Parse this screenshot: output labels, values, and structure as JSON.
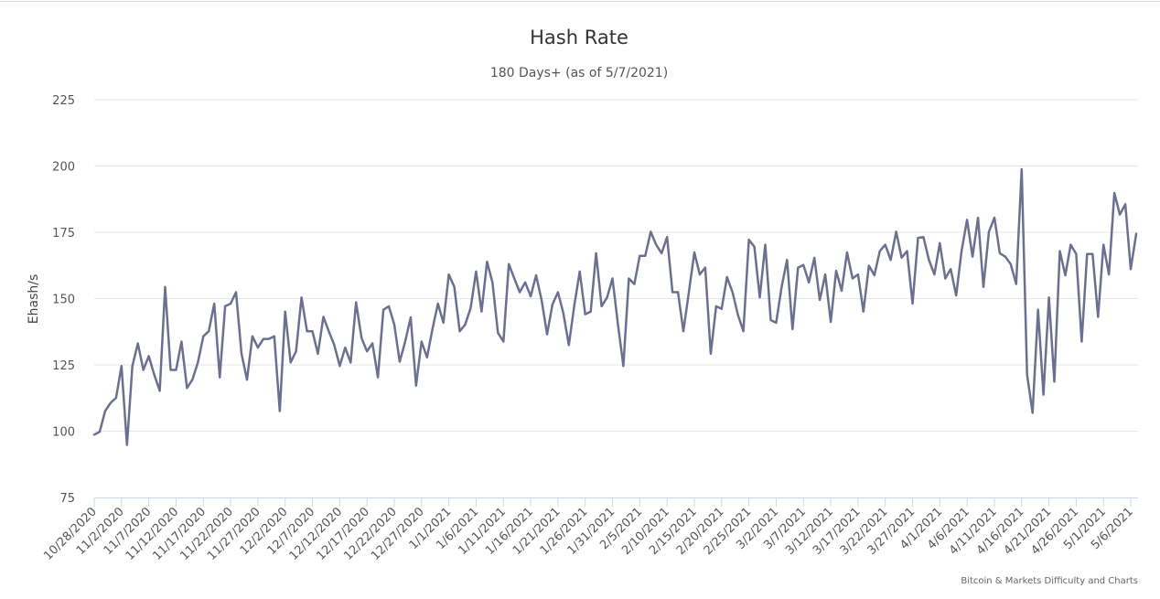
{
  "chart_data": {
    "type": "line",
    "title": "Hash Rate",
    "subtitle": "180 Days+ (as of 5/7/2021)",
    "ylabel": "Ehash/s",
    "ylim": [
      75,
      225
    ],
    "yticks": [
      75,
      100,
      125,
      150,
      175,
      200,
      225
    ],
    "xlim": [
      "10/28/2020",
      "5/7/2021"
    ],
    "xtick_labels": [
      "10/28/2020",
      "11/2/2020",
      "11/7/2020",
      "11/12/2020",
      "11/17/2020",
      "11/22/2020",
      "11/27/2020",
      "12/2/2020",
      "12/7/2020",
      "12/12/2020",
      "12/17/2020",
      "12/22/2020",
      "12/27/2020",
      "1/1/2021",
      "1/6/2021",
      "1/11/2021",
      "1/16/2021",
      "1/21/2021",
      "1/26/2021",
      "1/31/2021",
      "2/5/2021",
      "2/10/2021",
      "2/15/2021",
      "2/20/2021",
      "2/25/2021",
      "3/2/2021",
      "3/7/2021",
      "3/12/2021",
      "3/17/2021",
      "3/22/2021",
      "3/27/2021",
      "4/1/2021",
      "4/6/2021",
      "4/11/2021",
      "4/16/2021",
      "4/21/2021",
      "4/26/2021",
      "5/1/2021",
      "5/6/2021"
    ],
    "grid": true,
    "legend": "none",
    "line_color": "#6b7090",
    "series": [
      {
        "values": [
          98.7,
          99.8,
          107.6,
          110.7,
          112.6,
          124.6,
          94.8,
          124.6,
          133.1,
          123.1,
          128.3,
          121.3,
          115.2,
          154.4,
          123.1,
          123.1,
          133.8,
          116.3,
          119.4,
          125.9,
          135.8,
          137.7,
          148.1,
          120.3,
          147.1,
          148.1,
          152.4,
          129.2,
          119.4,
          135.8,
          131.5,
          134.8,
          134.8,
          135.8,
          107.6,
          145.1,
          125.9,
          130.1,
          150.4,
          137.7,
          137.7,
          129.2,
          143.1,
          137.7,
          132.5,
          124.6,
          131.5,
          125.9,
          148.6,
          135.1,
          130.1,
          133.1,
          120.3,
          145.8,
          147.1,
          140.2,
          126.2,
          133.8,
          142.9,
          117.2,
          133.8,
          127.8,
          138.5,
          148.1,
          140.9,
          159.1,
          154.4,
          137.7,
          140.2,
          146.5,
          160.2,
          145.1,
          163.9,
          156.1,
          137.1,
          133.8,
          163.0,
          157.6,
          152.4,
          156.1,
          150.9,
          158.8,
          149.5,
          136.5,
          147.8,
          152.4,
          144.5,
          132.5,
          147.5,
          160.2,
          144.1,
          145.1,
          167.1,
          147.1,
          150.4,
          157.6,
          140.2,
          124.6,
          157.6,
          155.5,
          166.1,
          166.1,
          175.2,
          170.3,
          167.1,
          173.2,
          152.4,
          152.4,
          137.7,
          152.4,
          167.4,
          159.1,
          161.7,
          129.2,
          147.1,
          146.1,
          158.1,
          152.4,
          143.8,
          137.7,
          172.2,
          169.5,
          150.4,
          170.3,
          141.9,
          140.9,
          154.4,
          164.6,
          138.5,
          161.7,
          162.7,
          156.1,
          165.4,
          149.5,
          159.1,
          141.2,
          160.5,
          153.0,
          167.4,
          157.6,
          159.1,
          145.1,
          162.4,
          158.8,
          167.9,
          170.3,
          164.6,
          175.2,
          165.4,
          167.9,
          148.1,
          172.9,
          173.2,
          164.6,
          159.1,
          170.9,
          157.6,
          161.1,
          151.2,
          168.2,
          179.7,
          165.8,
          180.5,
          154.4,
          175.2,
          180.5,
          167.1,
          165.8,
          163.0,
          155.5,
          198.8,
          121.3,
          106.9,
          145.8,
          113.8,
          150.4,
          118.7,
          167.9,
          158.8,
          170.3,
          166.8,
          133.8,
          166.8,
          166.8,
          143.1,
          170.3,
          159.1,
          189.8,
          181.7,
          185.6,
          161.1,
          174.4
        ]
      }
    ]
  },
  "credits": "Bitcoin & Markets Difficulty and Charts"
}
